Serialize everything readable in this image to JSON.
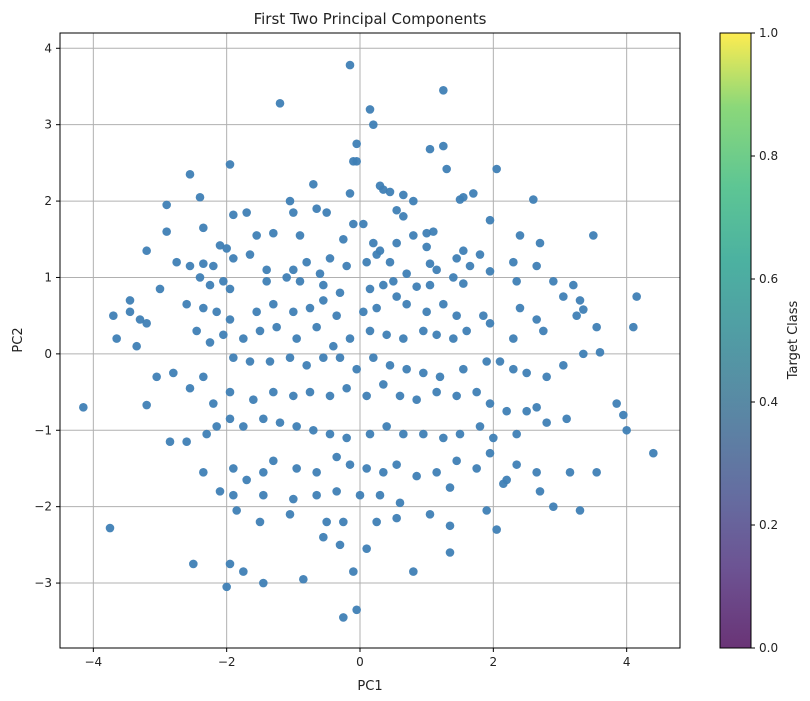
{
  "chart_data": {
    "type": "scatter",
    "title": "First Two Principal Components",
    "xlabel": "PC1",
    "ylabel": "PC2",
    "xlim": [
      -4.5,
      4.8
    ],
    "ylim": [
      -3.85,
      4.2
    ],
    "xticks": [
      -4,
      -2,
      0,
      2,
      4
    ],
    "yticks": [
      -3,
      -2,
      -1,
      0,
      1,
      2,
      3,
      4
    ],
    "grid": true,
    "marker_color": "#3f7fb5",
    "colorbar": {
      "label": "Target Class",
      "min": 0.0,
      "max": 1.0,
      "ticks": [
        "0.0",
        "0.2",
        "0.4",
        "0.6",
        "0.8",
        "1.0"
      ],
      "colormap": "viridis"
    },
    "points": [
      [
        -0.15,
        3.78
      ],
      [
        -1.2,
        3.28
      ],
      [
        0.15,
        3.2
      ],
      [
        1.25,
        3.45
      ],
      [
        0.2,
        3.0
      ],
      [
        -0.05,
        2.75
      ],
      [
        1.25,
        2.72
      ],
      [
        1.05,
        2.68
      ],
      [
        -2.55,
        2.35
      ],
      [
        -1.95,
        2.48
      ],
      [
        -0.05,
        2.52
      ],
      [
        -0.1,
        2.52
      ],
      [
        0.3,
        2.2
      ],
      [
        1.3,
        2.42
      ],
      [
        2.05,
        2.42
      ],
      [
        -0.7,
        2.22
      ],
      [
        -2.4,
        2.05
      ],
      [
        -2.9,
        1.95
      ],
      [
        -1.05,
        2.0
      ],
      [
        -0.15,
        2.1
      ],
      [
        0.35,
        2.15
      ],
      [
        0.45,
        2.12
      ],
      [
        0.65,
        2.08
      ],
      [
        0.8,
        2.0
      ],
      [
        1.5,
        2.02
      ],
      [
        1.55,
        2.05
      ],
      [
        1.7,
        2.1
      ],
      [
        2.6,
        2.02
      ],
      [
        -1.7,
        1.85
      ],
      [
        -1.9,
        1.82
      ],
      [
        -1.0,
        1.85
      ],
      [
        -0.65,
        1.9
      ],
      [
        -0.5,
        1.85
      ],
      [
        -0.1,
        1.7
      ],
      [
        0.05,
        1.7
      ],
      [
        0.55,
        1.88
      ],
      [
        0.65,
        1.8
      ],
      [
        1.0,
        1.58
      ],
      [
        1.1,
        1.6
      ],
      [
        1.95,
        1.75
      ],
      [
        2.4,
        1.55
      ],
      [
        3.5,
        1.55
      ],
      [
        -2.35,
        1.65
      ],
      [
        -2.9,
        1.6
      ],
      [
        -3.2,
        1.35
      ],
      [
        -2.1,
        1.42
      ],
      [
        -2.0,
        1.38
      ],
      [
        -1.55,
        1.55
      ],
      [
        -1.3,
        1.58
      ],
      [
        -0.9,
        1.55
      ],
      [
        -0.25,
        1.5
      ],
      [
        0.2,
        1.45
      ],
      [
        0.3,
        1.35
      ],
      [
        0.55,
        1.45
      ],
      [
        0.8,
        1.55
      ],
      [
        1.0,
        1.4
      ],
      [
        1.55,
        1.35
      ],
      [
        1.8,
        1.3
      ],
      [
        2.7,
        1.45
      ],
      [
        -2.75,
        1.2
      ],
      [
        -2.55,
        1.15
      ],
      [
        -2.35,
        1.18
      ],
      [
        -2.2,
        1.15
      ],
      [
        -1.9,
        1.25
      ],
      [
        -1.65,
        1.3
      ],
      [
        -1.4,
        1.1
      ],
      [
        -1.0,
        1.1
      ],
      [
        -0.8,
        1.2
      ],
      [
        -0.6,
        1.05
      ],
      [
        -0.45,
        1.25
      ],
      [
        -0.2,
        1.15
      ],
      [
        0.1,
        1.2
      ],
      [
        0.25,
        1.3
      ],
      [
        0.45,
        1.2
      ],
      [
        0.7,
        1.05
      ],
      [
        1.05,
        1.18
      ],
      [
        1.15,
        1.1
      ],
      [
        1.45,
        1.25
      ],
      [
        1.65,
        1.15
      ],
      [
        1.95,
        1.08
      ],
      [
        2.3,
        1.2
      ],
      [
        2.65,
        1.15
      ],
      [
        -3.0,
        0.85
      ],
      [
        -2.4,
        1.0
      ],
      [
        -2.25,
        0.9
      ],
      [
        -2.05,
        0.95
      ],
      [
        -1.95,
        0.85
      ],
      [
        -1.4,
        0.95
      ],
      [
        -1.1,
        1.0
      ],
      [
        -0.9,
        0.95
      ],
      [
        -0.55,
        0.9
      ],
      [
        -0.3,
        0.8
      ],
      [
        0.15,
        0.85
      ],
      [
        0.35,
        0.9
      ],
      [
        0.5,
        0.95
      ],
      [
        0.85,
        0.88
      ],
      [
        1.05,
        0.9
      ],
      [
        1.4,
        1.0
      ],
      [
        1.55,
        0.92
      ],
      [
        2.35,
        0.95
      ],
      [
        2.9,
        0.95
      ],
      [
        3.2,
        0.9
      ],
      [
        -3.45,
        0.7
      ],
      [
        -3.7,
        0.5
      ],
      [
        -3.45,
        0.55
      ],
      [
        -3.3,
        0.45
      ],
      [
        -3.2,
        0.4
      ],
      [
        -2.6,
        0.65
      ],
      [
        -2.35,
        0.6
      ],
      [
        -2.15,
        0.55
      ],
      [
        -1.95,
        0.45
      ],
      [
        -1.55,
        0.55
      ],
      [
        -1.3,
        0.65
      ],
      [
        -1.0,
        0.55
      ],
      [
        -0.75,
        0.6
      ],
      [
        -0.55,
        0.7
      ],
      [
        -0.35,
        0.5
      ],
      [
        0.05,
        0.55
      ],
      [
        0.25,
        0.6
      ],
      [
        0.55,
        0.75
      ],
      [
        0.7,
        0.65
      ],
      [
        1.0,
        0.55
      ],
      [
        1.25,
        0.65
      ],
      [
        1.45,
        0.5
      ],
      [
        1.85,
        0.5
      ],
      [
        2.4,
        0.6
      ],
      [
        2.65,
        0.45
      ],
      [
        3.05,
        0.75
      ],
      [
        3.3,
        0.7
      ],
      [
        3.35,
        0.58
      ],
      [
        3.25,
        0.5
      ],
      [
        4.15,
        0.75
      ],
      [
        -3.65,
        0.2
      ],
      [
        -3.35,
        0.1
      ],
      [
        -2.45,
        0.3
      ],
      [
        -2.25,
        0.15
      ],
      [
        -2.05,
        0.25
      ],
      [
        -1.75,
        0.2
      ],
      [
        -1.5,
        0.3
      ],
      [
        -1.25,
        0.35
      ],
      [
        -0.95,
        0.2
      ],
      [
        -0.65,
        0.35
      ],
      [
        -0.4,
        0.1
      ],
      [
        -0.15,
        0.2
      ],
      [
        0.15,
        0.3
      ],
      [
        0.4,
        0.25
      ],
      [
        0.65,
        0.2
      ],
      [
        0.95,
        0.3
      ],
      [
        1.15,
        0.25
      ],
      [
        1.4,
        0.2
      ],
      [
        1.6,
        0.3
      ],
      [
        1.95,
        0.4
      ],
      [
        2.3,
        0.2
      ],
      [
        2.75,
        0.3
      ],
      [
        3.55,
        0.35
      ],
      [
        4.1,
        0.35
      ],
      [
        -3.05,
        -0.3
      ],
      [
        -2.8,
        -0.25
      ],
      [
        -2.35,
        -0.3
      ],
      [
        -1.9,
        -0.05
      ],
      [
        -1.65,
        -0.1
      ],
      [
        -1.35,
        -0.1
      ],
      [
        -1.05,
        -0.05
      ],
      [
        -0.8,
        -0.15
      ],
      [
        -0.55,
        -0.05
      ],
      [
        -0.3,
        -0.05
      ],
      [
        -0.05,
        -0.2
      ],
      [
        0.2,
        -0.05
      ],
      [
        0.45,
        -0.15
      ],
      [
        0.7,
        -0.2
      ],
      [
        0.95,
        -0.25
      ],
      [
        1.2,
        -0.3
      ],
      [
        1.55,
        -0.2
      ],
      [
        1.9,
        -0.1
      ],
      [
        2.1,
        -0.1
      ],
      [
        2.3,
        -0.2
      ],
      [
        2.5,
        -0.25
      ],
      [
        2.8,
        -0.3
      ],
      [
        3.05,
        -0.15
      ],
      [
        3.35,
        0.0
      ],
      [
        3.6,
        0.02
      ],
      [
        -4.15,
        -0.7
      ],
      [
        -3.2,
        -0.67
      ],
      [
        -2.55,
        -0.45
      ],
      [
        -2.2,
        -0.65
      ],
      [
        -1.95,
        -0.5
      ],
      [
        -1.6,
        -0.6
      ],
      [
        -1.3,
        -0.5
      ],
      [
        -1.0,
        -0.55
      ],
      [
        -0.75,
        -0.5
      ],
      [
        -0.45,
        -0.55
      ],
      [
        -0.2,
        -0.45
      ],
      [
        0.1,
        -0.55
      ],
      [
        0.35,
        -0.4
      ],
      [
        0.6,
        -0.55
      ],
      [
        0.85,
        -0.6
      ],
      [
        1.15,
        -0.5
      ],
      [
        1.45,
        -0.55
      ],
      [
        1.75,
        -0.5
      ],
      [
        1.95,
        -0.65
      ],
      [
        2.2,
        -0.75
      ],
      [
        2.5,
        -0.75
      ],
      [
        2.65,
        -0.7
      ],
      [
        3.1,
        -0.85
      ],
      [
        3.85,
        -0.65
      ],
      [
        3.95,
        -0.8
      ],
      [
        -2.85,
        -1.15
      ],
      [
        -2.6,
        -1.15
      ],
      [
        -2.3,
        -1.05
      ],
      [
        -2.15,
        -0.95
      ],
      [
        -1.95,
        -0.85
      ],
      [
        -1.75,
        -0.95
      ],
      [
        -1.45,
        -0.85
      ],
      [
        -1.2,
        -0.9
      ],
      [
        -0.95,
        -0.95
      ],
      [
        -0.7,
        -1.0
      ],
      [
        -0.45,
        -1.05
      ],
      [
        -0.2,
        -1.1
      ],
      [
        0.15,
        -1.05
      ],
      [
        0.4,
        -0.95
      ],
      [
        0.65,
        -1.05
      ],
      [
        0.95,
        -1.05
      ],
      [
        1.25,
        -1.1
      ],
      [
        1.5,
        -1.05
      ],
      [
        1.8,
        -0.95
      ],
      [
        2.0,
        -1.1
      ],
      [
        2.35,
        -1.05
      ],
      [
        2.8,
        -0.9
      ],
      [
        4.0,
        -1.0
      ],
      [
        4.4,
        -1.3
      ],
      [
        -2.35,
        -1.55
      ],
      [
        -1.9,
        -1.5
      ],
      [
        -1.7,
        -1.65
      ],
      [
        -1.45,
        -1.55
      ],
      [
        -1.3,
        -1.4
      ],
      [
        -0.95,
        -1.5
      ],
      [
        -0.65,
        -1.55
      ],
      [
        -0.35,
        -1.35
      ],
      [
        -0.15,
        -1.45
      ],
      [
        0.1,
        -1.5
      ],
      [
        0.35,
        -1.55
      ],
      [
        0.55,
        -1.45
      ],
      [
        0.85,
        -1.6
      ],
      [
        1.15,
        -1.55
      ],
      [
        1.45,
        -1.4
      ],
      [
        1.75,
        -1.5
      ],
      [
        1.95,
        -1.3
      ],
      [
        2.2,
        -1.65
      ],
      [
        2.35,
        -1.45
      ],
      [
        2.65,
        -1.55
      ],
      [
        3.15,
        -1.55
      ],
      [
        3.55,
        -1.55
      ],
      [
        -2.1,
        -1.8
      ],
      [
        -1.9,
        -1.85
      ],
      [
        -1.45,
        -1.85
      ],
      [
        -1.0,
        -1.9
      ],
      [
        -0.65,
        -1.85
      ],
      [
        -0.35,
        -1.8
      ],
      [
        0.0,
        -1.85
      ],
      [
        0.3,
        -1.85
      ],
      [
        0.6,
        -1.95
      ],
      [
        1.35,
        -1.75
      ],
      [
        2.15,
        -1.7
      ],
      [
        2.7,
        -1.8
      ],
      [
        2.9,
        -2.0
      ],
      [
        3.3,
        -2.05
      ],
      [
        -3.75,
        -2.28
      ],
      [
        -1.85,
        -2.05
      ],
      [
        -1.5,
        -2.2
      ],
      [
        -1.05,
        -2.1
      ],
      [
        -0.5,
        -2.2
      ],
      [
        -0.25,
        -2.2
      ],
      [
        0.25,
        -2.2
      ],
      [
        0.55,
        -2.15
      ],
      [
        1.05,
        -2.1
      ],
      [
        1.35,
        -2.25
      ],
      [
        1.9,
        -2.05
      ],
      [
        2.05,
        -2.3
      ],
      [
        -2.5,
        -2.75
      ],
      [
        -1.95,
        -2.75
      ],
      [
        -1.75,
        -2.85
      ],
      [
        -1.45,
        -3.0
      ],
      [
        -0.55,
        -2.4
      ],
      [
        -0.3,
        -2.5
      ],
      [
        0.1,
        -2.55
      ],
      [
        0.8,
        -2.85
      ],
      [
        1.35,
        -2.6
      ],
      [
        -2.0,
        -3.05
      ],
      [
        -0.85,
        -2.95
      ],
      [
        -0.1,
        -2.85
      ],
      [
        -0.25,
        -3.45
      ],
      [
        -0.05,
        -3.35
      ]
    ]
  }
}
